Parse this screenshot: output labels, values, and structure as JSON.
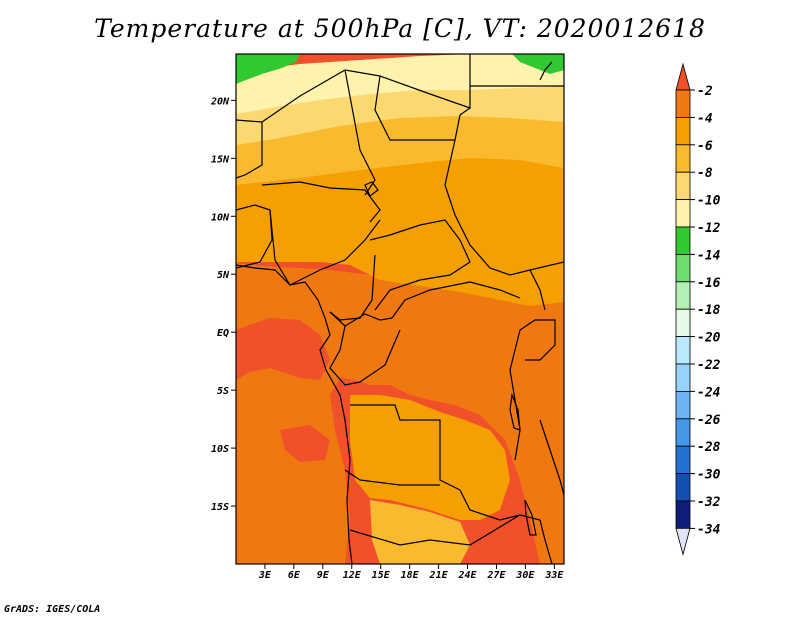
{
  "title": "Temperature at 500hPa [C], VT: 2020012618",
  "credit": "GrADS: IGES/COLA",
  "map": {
    "type": "filled-contour-map",
    "variable": "Temperature at 500hPa",
    "units": "C",
    "valid_time": "2020012618",
    "region": "Central Africa",
    "lat_range": [
      -20,
      24
    ],
    "lon_range": [
      0,
      34
    ],
    "lat_ticks": [
      {
        "value": 20,
        "label": "20N"
      },
      {
        "value": 15,
        "label": "15N"
      },
      {
        "value": 10,
        "label": "10N"
      },
      {
        "value": 5,
        "label": "5N"
      },
      {
        "value": 0,
        "label": "EQ"
      },
      {
        "value": -5,
        "label": "5S"
      },
      {
        "value": -10,
        "label": "10S"
      },
      {
        "value": -15,
        "label": "15S"
      }
    ],
    "lon_ticks": [
      {
        "value": 3,
        "label": "3E"
      },
      {
        "value": 6,
        "label": "6E"
      },
      {
        "value": 9,
        "label": "9E"
      },
      {
        "value": 12,
        "label": "12E"
      },
      {
        "value": 15,
        "label": "15E"
      },
      {
        "value": 18,
        "label": "18E"
      },
      {
        "value": 21,
        "label": "21E"
      },
      {
        "value": 24,
        "label": "24E"
      },
      {
        "value": 27,
        "label": "27E"
      },
      {
        "value": 30,
        "label": "30E"
      },
      {
        "value": 33,
        "label": "33E"
      }
    ]
  },
  "colorbar": {
    "levels": [
      "-2",
      "-4",
      "-6",
      "-8",
      "-10",
      "-12",
      "-14",
      "-16",
      "-18",
      "-20",
      "-22",
      "-24",
      "-26",
      "-28",
      "-30",
      "-32",
      "-34"
    ],
    "colors": [
      "#f0502a",
      "#f07810",
      "#f5a000",
      "#faba30",
      "#fcd870",
      "#fff2ac",
      "#32c832",
      "#6edc6e",
      "#b4f0b4",
      "#e6fae6",
      "#bae8fc",
      "#98d2fa",
      "#6eb4f0",
      "#4696e6",
      "#2372d2",
      "#1450b4",
      "#0f1e78",
      "#e2e2f8"
    ]
  },
  "field_colors": {
    "deep_warm": "#f0502a",
    "warm": "#f07810",
    "mid": "#f5a000",
    "light": "#faba30",
    "pale": "#fcd870",
    "paler": "#fff2ac",
    "green": "#32c832",
    "light_green": "#6edc6e"
  }
}
